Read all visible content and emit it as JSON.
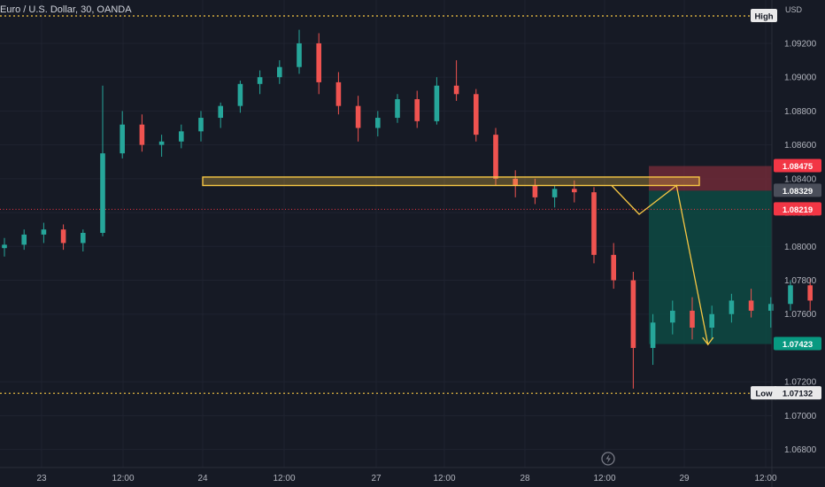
{
  "title": "Euro / U.S. Dollar, 30, OANDA",
  "currency": "USD",
  "colors": {
    "up": "#26a69a",
    "down": "#ef5350",
    "grid": "#1f2330",
    "position_box": "#f7c744",
    "stop_zone": "#7b2c3a",
    "target_zone": "#0d4a43",
    "projection": "#f7c744",
    "high_low_line": "#f7c744",
    "current_price": "#f23645"
  },
  "chart_data": {
    "type": "candlestick",
    "symbol": "EURUSD",
    "timeframe": "30",
    "x_ticks": [
      "23",
      "12:00",
      "24",
      "12:00",
      "27",
      "12:00",
      "28",
      "12:00",
      "29",
      "12:00"
    ],
    "y_ticks": [
      "1.09200",
      "1.09000",
      "1.08800",
      "1.08600",
      "1.08400",
      "1.08200",
      "1.08000",
      "1.07800",
      "1.07600",
      "1.07200",
      "1.07000",
      "1.06800"
    ],
    "ylim": [
      1.0673,
      1.0943
    ],
    "high": {
      "label": "High",
      "value": 1.0928
    },
    "low": {
      "label": "Low",
      "value": 1.07132,
      "value_text": "1.07132"
    },
    "current_price": {
      "value": 1.08219,
      "value_text": "1.08219"
    },
    "position": {
      "stop": {
        "value": 1.08475,
        "value_text": "1.08475"
      },
      "entry": {
        "value": 1.08329,
        "value_text": "1.08329"
      },
      "target": {
        "value": 1.07423,
        "value_text": "1.07423"
      }
    },
    "resistance_zone": {
      "top": 1.0841,
      "bottom": 1.0836
    },
    "projection_path": [
      {
        "x": 30.9,
        "y": 1.0836
      },
      {
        "x": 32.3,
        "y": 1.0819
      },
      {
        "x": 34.2,
        "y": 1.0836
      },
      {
        "x": 35.8,
        "y": 1.0742
      }
    ],
    "candles": [
      [
        1.0799,
        1.0805,
        1.0794,
        1.0801
      ],
      [
        1.0801,
        1.081,
        1.0798,
        1.0807
      ],
      [
        1.0807,
        1.0814,
        1.0802,
        1.081
      ],
      [
        1.081,
        1.0813,
        1.0798,
        1.0802
      ],
      [
        1.0802,
        1.081,
        1.0797,
        1.0808
      ],
      [
        1.0808,
        1.0895,
        1.0806,
        1.0855
      ],
      [
        1.0855,
        1.088,
        1.0852,
        1.0872
      ],
      [
        1.0872,
        1.0878,
        1.0856,
        1.086
      ],
      [
        1.086,
        1.0866,
        1.0853,
        1.0862
      ],
      [
        1.0862,
        1.0872,
        1.0858,
        1.0868
      ],
      [
        1.0868,
        1.088,
        1.0862,
        1.0876
      ],
      [
        1.0876,
        1.0885,
        1.087,
        1.0883
      ],
      [
        1.0883,
        1.0898,
        1.0879,
        1.0896
      ],
      [
        1.0896,
        1.0904,
        1.089,
        1.09
      ],
      [
        1.09,
        1.091,
        1.0896,
        1.0906
      ],
      [
        1.0906,
        1.0928,
        1.0902,
        1.092
      ],
      [
        1.092,
        1.0926,
        1.089,
        1.0897
      ],
      [
        1.0897,
        1.0903,
        1.0878,
        1.0883
      ],
      [
        1.0883,
        1.0889,
        1.0862,
        1.087
      ],
      [
        1.087,
        1.088,
        1.0865,
        1.0876
      ],
      [
        1.0876,
        1.089,
        1.0873,
        1.0887
      ],
      [
        1.0887,
        1.0892,
        1.087,
        1.0874
      ],
      [
        1.0874,
        1.09,
        1.0872,
        1.0895
      ],
      [
        1.0895,
        1.091,
        1.0886,
        1.089
      ],
      [
        1.089,
        1.0893,
        1.0862,
        1.0866
      ],
      [
        1.0866,
        1.087,
        1.0836,
        1.084
      ],
      [
        1.084,
        1.0845,
        1.0829,
        1.0836
      ],
      [
        1.0836,
        1.084,
        1.0825,
        1.0829
      ],
      [
        1.0829,
        1.0836,
        1.0823,
        1.0834
      ],
      [
        1.0834,
        1.0839,
        1.0826,
        1.0832
      ],
      [
        1.0832,
        1.0835,
        1.079,
        1.0795
      ],
      [
        1.0795,
        1.0802,
        1.0775,
        1.078
      ],
      [
        1.078,
        1.0785,
        1.0716,
        1.074
      ],
      [
        1.074,
        1.076,
        1.073,
        1.0755
      ],
      [
        1.0755,
        1.0768,
        1.0748,
        1.0762
      ],
      [
        1.0762,
        1.077,
        1.0745,
        1.0752
      ],
      [
        1.0752,
        1.0765,
        1.0745,
        1.076
      ],
      [
        1.076,
        1.0772,
        1.0755,
        1.0768
      ],
      [
        1.0768,
        1.0775,
        1.0758,
        1.0762
      ],
      [
        1.0762,
        1.077,
        1.0752,
        1.0766
      ],
      [
        1.0766,
        1.078,
        1.0762,
        1.0777
      ],
      [
        1.0777,
        1.0781,
        1.0762,
        1.0768
      ],
      [
        1.0768,
        1.0772,
        1.0755,
        1.076
      ],
      [
        1.076,
        1.077,
        1.0756,
        1.0767
      ],
      [
        1.0767,
        1.0775,
        1.0761,
        1.0764
      ],
      [
        1.0764,
        1.0771,
        1.0752,
        1.0758
      ],
      [
        1.0758,
        1.0765,
        1.075,
        1.0762
      ],
      [
        1.0762,
        1.0776,
        1.0758,
        1.0772
      ],
      [
        1.0772,
        1.0778,
        1.0764,
        1.0775
      ],
      [
        1.0775,
        1.079,
        1.0772,
        1.0788
      ],
      [
        1.0788,
        1.0796,
        1.0782,
        1.0793
      ],
      [
        1.0793,
        1.0798,
        1.0788,
        1.0795
      ],
      [
        1.0795,
        1.0801,
        1.079,
        1.0798
      ],
      [
        1.0798,
        1.0808,
        1.0796,
        1.0805
      ],
      [
        1.0805,
        1.0812,
        1.08,
        1.0809
      ],
      [
        1.0809,
        1.0815,
        1.0803,
        1.0812
      ],
      [
        1.0812,
        1.0818,
        1.0806,
        1.0815
      ],
      [
        1.0815,
        1.082,
        1.0809,
        1.0813
      ],
      [
        1.0813,
        1.0818,
        1.0806,
        1.0811
      ],
      [
        1.0811,
        1.0816,
        1.0808,
        1.0814
      ],
      [
        1.0814,
        1.0836,
        1.0809,
        1.0822
      ]
    ]
  }
}
